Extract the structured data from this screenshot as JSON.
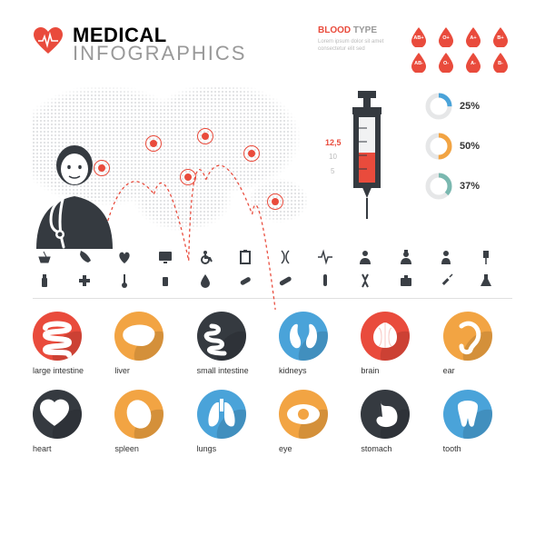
{
  "colors": {
    "accent": "#e94b3c",
    "dark": "#353a40",
    "muted": "#b9bcc0",
    "blue": "#4aa3d9",
    "orange": "#f2a443",
    "teal": "#7ab8b0"
  },
  "title": {
    "main": "MEDICAL",
    "sub": "INFOGRAPHICS"
  },
  "blood": {
    "title": "BLOOD",
    "title_sub": "TYPE",
    "desc": "Lorem ipsum dolor sit amet consectetur elit sed",
    "types": [
      "AB+",
      "O+",
      "A+",
      "B+",
      "AB-",
      "O-",
      "A-",
      "B-"
    ]
  },
  "map_markers": [
    {
      "x": 22,
      "y": 52
    },
    {
      "x": 40,
      "y": 35
    },
    {
      "x": 52,
      "y": 58
    },
    {
      "x": 58,
      "y": 30
    },
    {
      "x": 74,
      "y": 42
    },
    {
      "x": 82,
      "y": 75
    }
  ],
  "syringe": {
    "ticks": [
      "12,5",
      "10",
      "5"
    ],
    "fill_pct": 45
  },
  "donuts": [
    {
      "pct": 25,
      "color": "#4aa3d9"
    },
    {
      "pct": 50,
      "color": "#f2a443"
    },
    {
      "pct": 37,
      "color": "#7ab8b0"
    }
  ],
  "icon_row1": [
    "mortar",
    "phone",
    "heart-pulse",
    "monitor",
    "wheelchair",
    "clipboard",
    "dna",
    "pulse",
    "doctor",
    "nurse",
    "patient",
    "iv-drip"
  ],
  "icon_row2": [
    "bottle",
    "cross",
    "thermometer",
    "pills",
    "drop",
    "capsule",
    "bandage",
    "test-tube",
    "ribbon",
    "kit",
    "syringe",
    "flask"
  ],
  "organs": [
    {
      "label": "large intestine",
      "color": "#e94b3c"
    },
    {
      "label": "liver",
      "color": "#f2a443"
    },
    {
      "label": "small intestine",
      "color": "#353a40"
    },
    {
      "label": "kidneys",
      "color": "#4aa3d9"
    },
    {
      "label": "brain",
      "color": "#e94b3c"
    },
    {
      "label": "ear",
      "color": "#f2a443"
    },
    {
      "label": "heart",
      "color": "#353a40"
    },
    {
      "label": "spleen",
      "color": "#f2a443"
    },
    {
      "label": "lungs",
      "color": "#4aa3d9"
    },
    {
      "label": "eye",
      "color": "#f2a443"
    },
    {
      "label": "stomach",
      "color": "#353a40"
    },
    {
      "label": "tooth",
      "color": "#4aa3d9"
    }
  ]
}
